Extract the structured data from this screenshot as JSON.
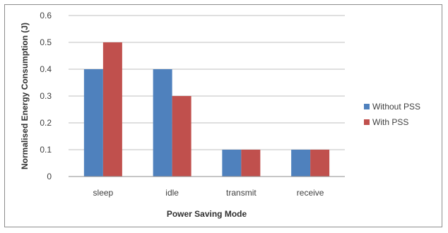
{
  "chart_data": {
    "type": "bar",
    "categories": [
      "sleep",
      "idle",
      "transmit",
      "receive"
    ],
    "series": [
      {
        "name": "Without PSS",
        "values": [
          0.4,
          0.4,
          0.1,
          0.1
        ],
        "color": "#4F81BD"
      },
      {
        "name": "With PSS",
        "values": [
          0.5,
          0.3,
          0.1,
          0.1
        ],
        "color": "#C0504D"
      }
    ],
    "xlabel": "Power Saving Mode",
    "ylabel": "Normalised Energy Consumption (J)",
    "ylim": [
      0,
      0.6
    ],
    "yticks": [
      "0",
      "0.1",
      "0.2",
      "0.3",
      "0.4",
      "0.5",
      "0.6"
    ],
    "grid": true,
    "legend_position": "right"
  }
}
